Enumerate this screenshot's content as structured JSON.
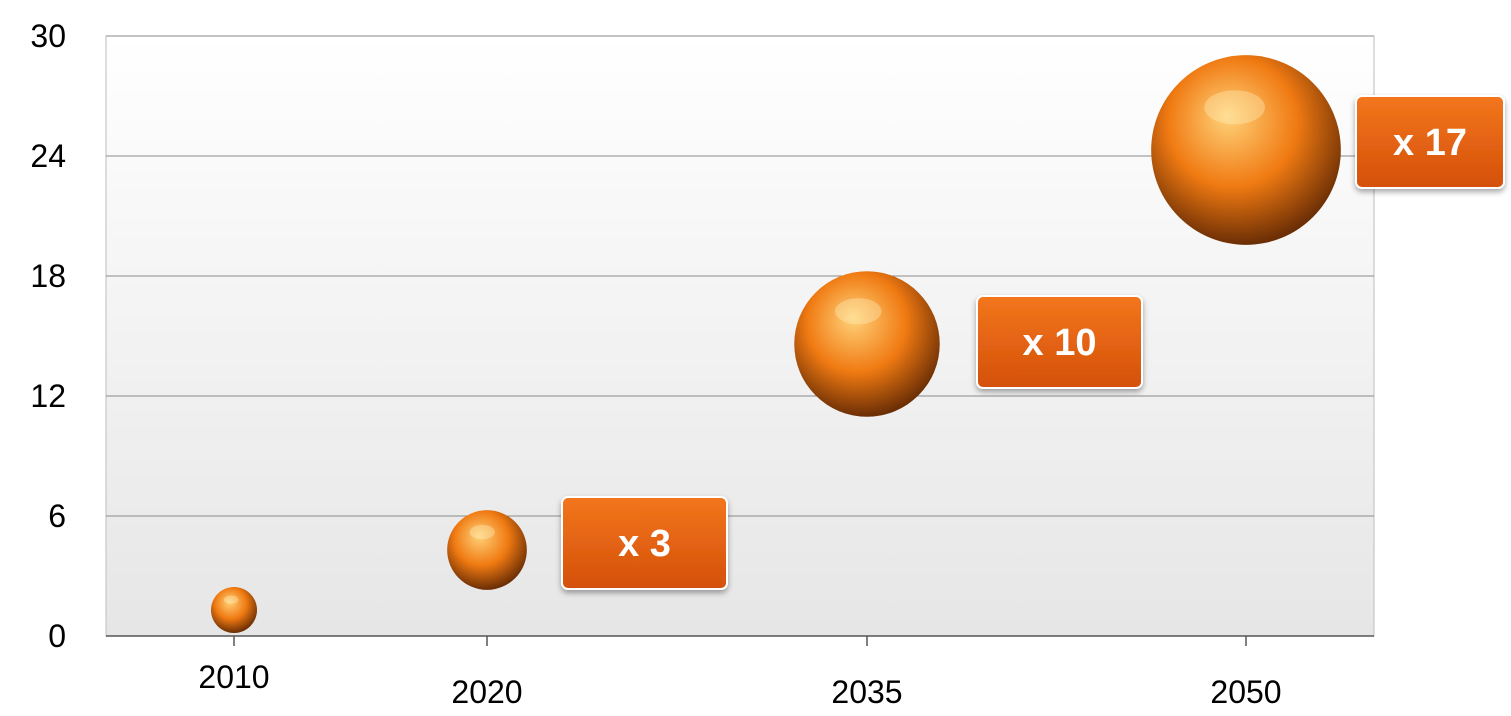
{
  "chart_data": {
    "type": "bubble",
    "categories": [
      "2010",
      "2020",
      "2035",
      "2050"
    ],
    "values": [
      1.3,
      4.3,
      14.6,
      24.3
    ],
    "relative_size": [
      1,
      3,
      10,
      17
    ],
    "annotations": [
      {
        "category": "2020",
        "label": "x 3"
      },
      {
        "category": "2035",
        "label": "x 10"
      },
      {
        "category": "2050",
        "label": "x 17"
      }
    ],
    "yticks": [
      "0",
      "6",
      "12",
      "18",
      "24",
      "30"
    ],
    "ylim": [
      0,
      30
    ],
    "title": "",
    "xlabel": "",
    "ylabel": "",
    "grid": true,
    "legend": "none",
    "colors": {
      "bubble_light": "#ffd27a",
      "bubble_mid": "#f07a12",
      "bubble_dark": "#6b2e05",
      "label_box_top": "#f3761c",
      "label_box_bottom": "#d4500a",
      "label_box_border": "#ffffff",
      "plot_bg_top": "#ffffff",
      "plot_bg_bottom": "#e6e6e6",
      "gridline": "#8a8a8a"
    }
  }
}
